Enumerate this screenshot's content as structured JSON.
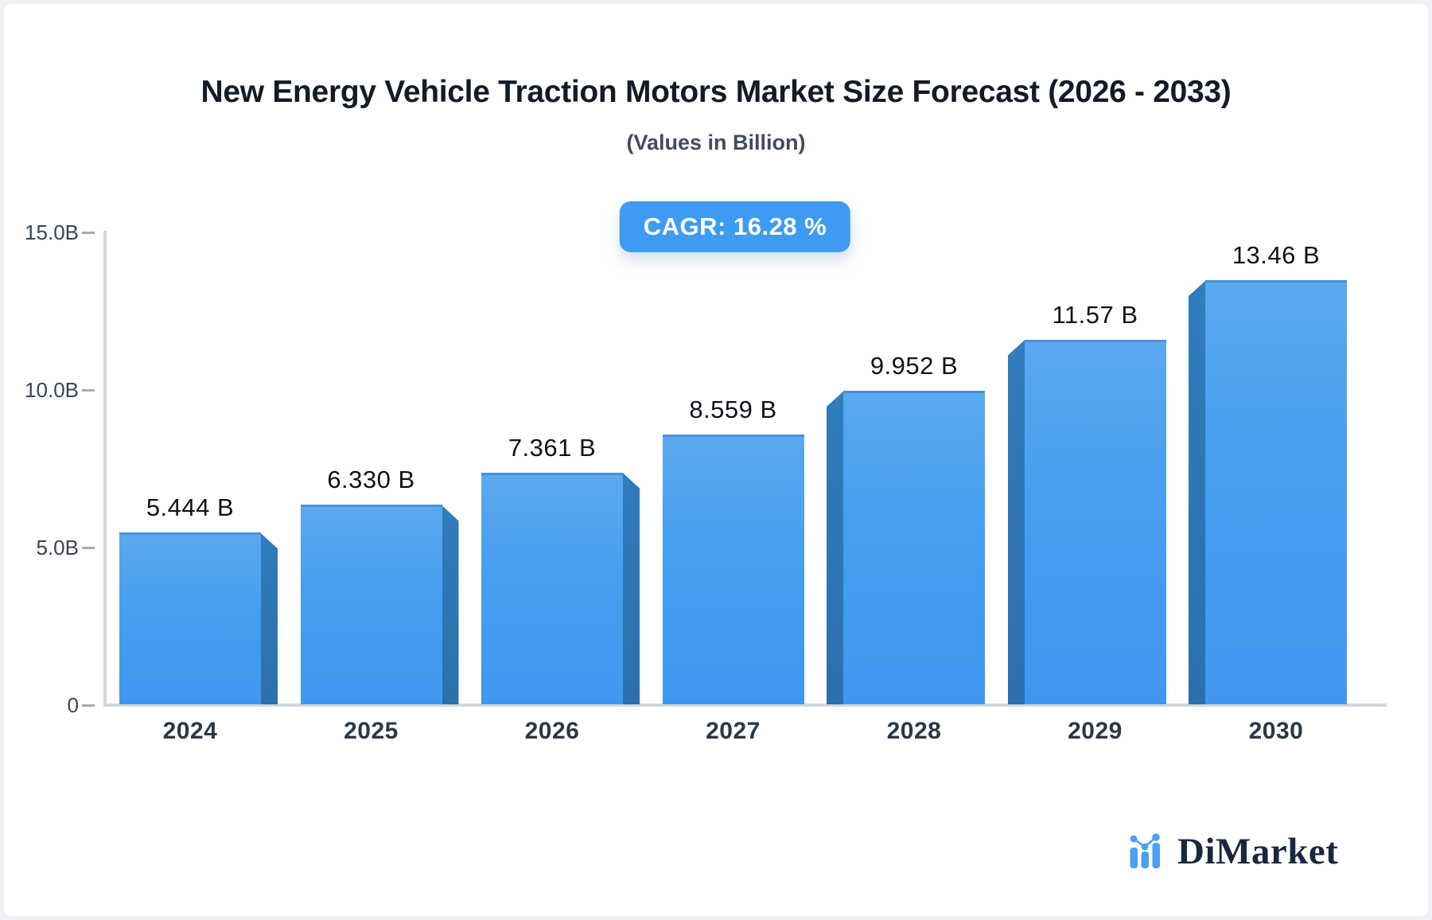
{
  "header": {
    "title": "New Energy Vehicle Traction Motors Market Size Forecast (2026 - 2033)",
    "subtitle": "(Values in Billion)",
    "cagr_badge": "CAGR: 16.28 %"
  },
  "chart_data": {
    "type": "bar",
    "title": "New Energy Vehicle Traction Motors Market Size Forecast (2026 - 2033)",
    "subtitle": "(Values in Billion)",
    "cagr": "16.28 %",
    "categories": [
      "2024",
      "2025",
      "2026",
      "2027",
      "2028",
      "2029",
      "2030"
    ],
    "values": [
      5.444,
      6.33,
      7.361,
      8.559,
      9.952,
      11.57,
      13.46
    ],
    "value_labels": [
      "5.444 B",
      "6.330 B",
      "7.361 B",
      "8.559 B",
      "9.952 B",
      "11.57 B",
      "13.46 B"
    ],
    "unit": "Billion",
    "xlabel": "",
    "ylabel": "",
    "ylim": [
      0,
      15
    ],
    "y_ticks": [
      {
        "label": "15.0B",
        "value": 15
      },
      {
        "label": "10.0B",
        "value": 10
      },
      {
        "label": "5.0B",
        "value": 5
      },
      {
        "label": "0",
        "value": 0
      }
    ],
    "grid": false,
    "legend": false,
    "bar_style": "3d-extruded-toward-center",
    "colors": {
      "bar_face_top": "#5ba8ee",
      "bar_face_bottom": "#3f97f0",
      "bar_side": "#2d76b6",
      "axis_line": "#d3d6dc",
      "badge_background": "#3d9cf2",
      "badge_text": "#ffffff",
      "text_dark": "#121b27"
    }
  },
  "footer": {
    "brand": "DiMarket"
  }
}
